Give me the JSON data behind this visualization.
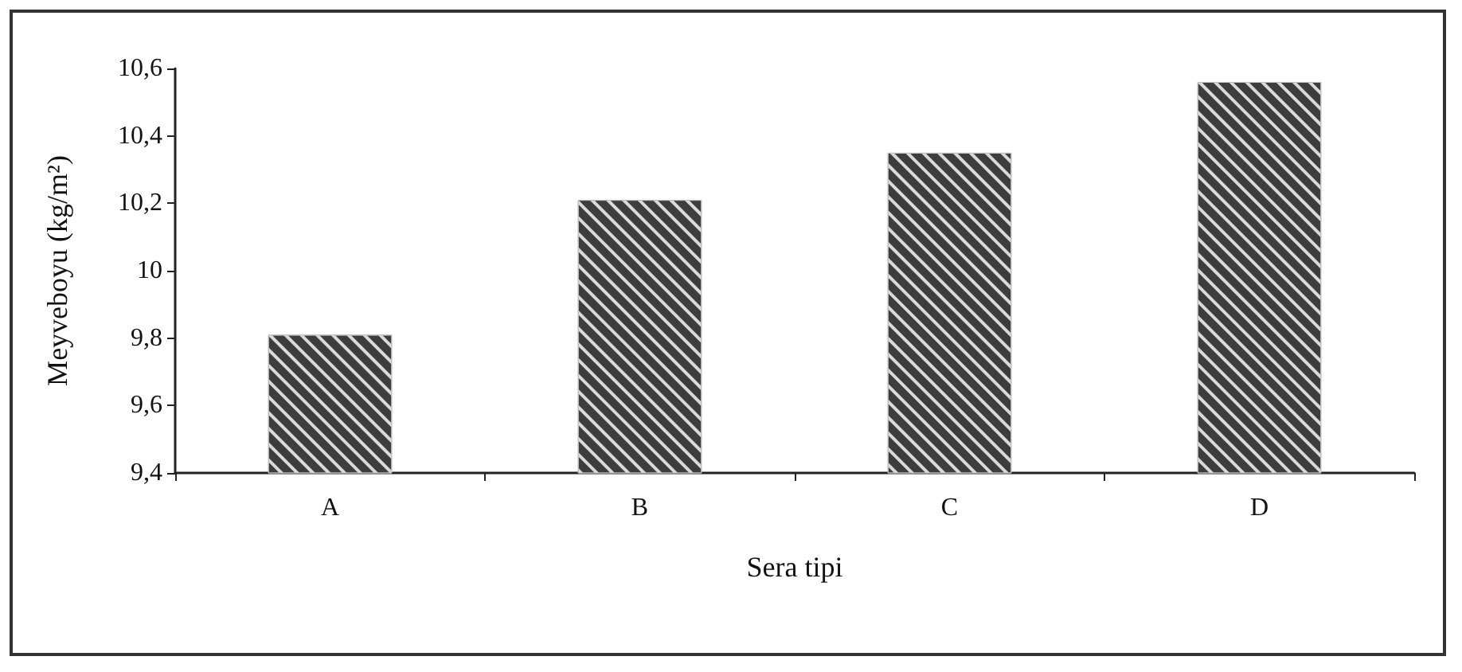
{
  "chart_data": {
    "type": "bar",
    "xlabel": "Sera tipi",
    "ylabel": "Meyveboyu (kg/m²)",
    "categories": [
      "A",
      "B",
      "C",
      "D"
    ],
    "values": [
      9.81,
      10.21,
      10.35,
      10.56
    ],
    "color": "#3d3d3d",
    "ylim": [
      9.4,
      10.6
    ],
    "yticks": [
      {
        "value": 9.4,
        "label": "9,4"
      },
      {
        "value": 9.6,
        "label": "9,6"
      },
      {
        "value": 9.8,
        "label": "9,8"
      },
      {
        "value": 10,
        "label": "10"
      },
      {
        "value": 10.2,
        "label": "10,2"
      },
      {
        "value": 10.4,
        "label": "10,4"
      },
      {
        "value": 10.6,
        "label": "10,6"
      }
    ],
    "grid": false
  }
}
